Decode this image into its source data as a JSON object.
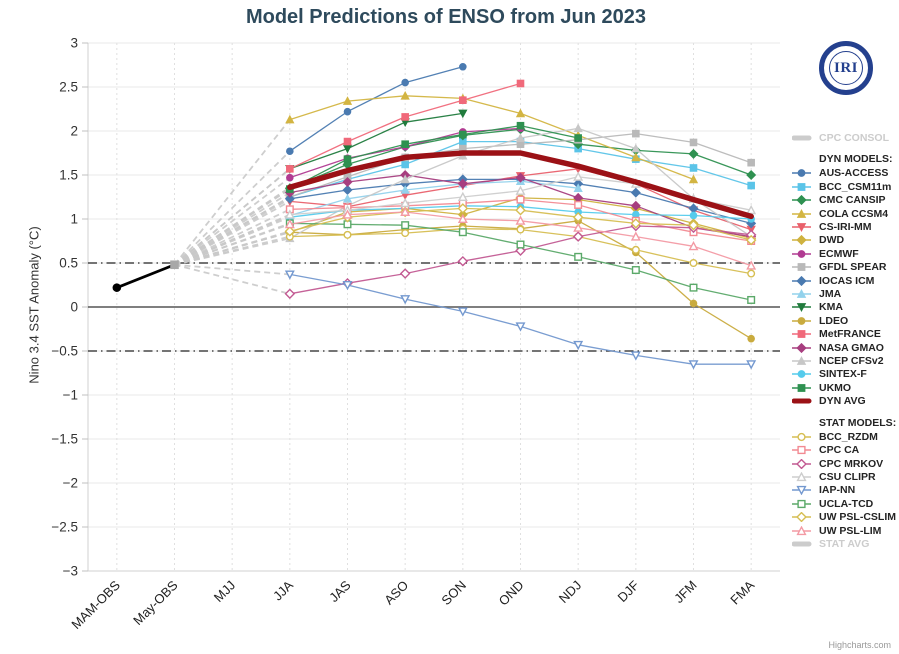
{
  "title": "Model Predictions of ENSO from Jun 2023",
  "credit": "Highcharts.com",
  "logo": {
    "text": "IRI"
  },
  "chart_data": {
    "type": "line",
    "title": "Model Predictions of ENSO from Jun 2023",
    "xlabel": "",
    "ylabel": "Nino 3.4 SST Anomaly (°C)",
    "ylim": [
      -3,
      3
    ],
    "ytick_step": 0.5,
    "grid": true,
    "legend_position": "right",
    "categories": [
      "MAM-OBS",
      "May-OBS",
      "MJJ",
      "JJA",
      "JAS",
      "ASO",
      "SON",
      "OND",
      "NDJ",
      "DJF",
      "JFM",
      "FMA"
    ],
    "observed": {
      "name": "OBS",
      "color": "#000000",
      "points": [
        {
          "category": "MAM-OBS",
          "value": 0.22,
          "marker": "circle",
          "marker_color": "#000000"
        },
        {
          "category": "May-OBS",
          "value": 0.48,
          "marker": "square",
          "marker_color": "#a8a8a8"
        }
      ]
    },
    "fan": {
      "from_category": "May-OBS",
      "from_value": 0.48,
      "color": "#c9c9c9",
      "style": "dashed"
    },
    "reference_lines": [
      {
        "value": 0,
        "style": "solid",
        "color": "#555555"
      },
      {
        "value": 0.5,
        "style": "dash-dot",
        "color": "#222222"
      },
      {
        "value": -0.5,
        "style": "dash-dot",
        "color": "#222222"
      }
    ],
    "series": [
      {
        "name": "AUS-ACCESS",
        "group": "dyn",
        "color": "#4a7ab0",
        "marker": "circle",
        "open": false,
        "values": [
          null,
          null,
          null,
          1.77,
          2.22,
          2.55,
          2.73,
          null,
          null,
          null,
          null,
          null
        ]
      },
      {
        "name": "BCC_CSM11m",
        "group": "dyn",
        "color": "#5bc4e8",
        "marker": "square",
        "open": false,
        "values": [
          null,
          null,
          null,
          1.25,
          1.45,
          1.62,
          1.88,
          1.88,
          1.8,
          1.68,
          1.58,
          1.38
        ]
      },
      {
        "name": "CMC CANSIP",
        "group": "dyn",
        "color": "#2f9151",
        "marker": "diamond",
        "open": false,
        "values": [
          null,
          null,
          null,
          1.35,
          1.62,
          1.82,
          1.95,
          2.02,
          1.85,
          1.78,
          1.74,
          1.5
        ]
      },
      {
        "name": "COLA CCSM4",
        "group": "dyn",
        "color": "#d3b542",
        "marker": "triangle",
        "open": false,
        "values": [
          null,
          null,
          null,
          2.13,
          2.34,
          2.4,
          2.37,
          2.2,
          1.95,
          1.7,
          1.45,
          null
        ]
      },
      {
        "name": "CS-IRI-MM",
        "group": "dyn",
        "color": "#e9606b",
        "marker": "triangle-down",
        "open": false,
        "values": [
          null,
          null,
          null,
          1.2,
          1.14,
          1.27,
          1.38,
          1.49,
          1.57,
          1.4,
          1.1,
          0.88
        ]
      },
      {
        "name": "DWD",
        "group": "dyn",
        "color": "#cfb23f",
        "marker": "diamond",
        "open": false,
        "values": [
          null,
          null,
          null,
          0.85,
          1.08,
          1.12,
          1.05,
          1.24,
          1.22,
          1.12,
          0.95,
          0.78
        ]
      },
      {
        "name": "ECMWF",
        "group": "dyn",
        "color": "#b13b92",
        "marker": "circle",
        "open": false,
        "values": [
          null,
          null,
          null,
          1.47,
          1.69,
          1.82,
          1.99,
          2.03,
          null,
          null,
          null,
          null
        ]
      },
      {
        "name": "GFDL SPEAR",
        "group": "dyn",
        "color": "#b9b9b9",
        "marker": "square",
        "open": false,
        "values": [
          null,
          null,
          null,
          1.25,
          1.48,
          1.7,
          1.8,
          1.85,
          1.9,
          1.97,
          1.87,
          1.64
        ]
      },
      {
        "name": "IOCAS ICM",
        "group": "dyn",
        "color": "#4a7ab0",
        "marker": "diamond",
        "open": false,
        "values": [
          null,
          null,
          null,
          1.23,
          1.33,
          1.4,
          1.45,
          1.45,
          1.4,
          1.3,
          1.12,
          0.95
        ]
      },
      {
        "name": "JMA",
        "group": "dyn",
        "color": "#93d2ec",
        "marker": "triangle",
        "open": false,
        "values": [
          null,
          null,
          null,
          1.04,
          1.23,
          1.33,
          1.4,
          1.43,
          1.35,
          null,
          null,
          null
        ]
      },
      {
        "name": "KMA",
        "group": "dyn",
        "color": "#207b3d",
        "marker": "triangle-down",
        "open": false,
        "values": [
          null,
          null,
          null,
          1.57,
          1.8,
          2.1,
          2.2,
          null,
          null,
          null,
          null,
          null
        ]
      },
      {
        "name": "LDEO",
        "group": "dyn",
        "color": "#c9ab3e",
        "marker": "circle",
        "open": false,
        "values": [
          null,
          null,
          null,
          0.85,
          0.82,
          0.88,
          0.92,
          0.89,
          0.98,
          0.62,
          0.04,
          -0.36
        ]
      },
      {
        "name": "MetFRANCE",
        "group": "dyn",
        "color": "#f0697a",
        "marker": "square",
        "open": false,
        "values": [
          null,
          null,
          null,
          1.57,
          1.88,
          2.16,
          2.35,
          2.54,
          null,
          null,
          null,
          null
        ]
      },
      {
        "name": "NASA GMAO",
        "group": "dyn",
        "color": "#a73e7f",
        "marker": "diamond",
        "open": false,
        "values": [
          null,
          null,
          null,
          1.3,
          1.42,
          1.5,
          1.4,
          1.47,
          1.24,
          1.15,
          0.9,
          0.8
        ]
      },
      {
        "name": "NCEP CFSv2",
        "group": "dyn",
        "color": "#c7c7c7",
        "marker": "triangle",
        "open": false,
        "values": [
          null,
          null,
          null,
          0.78,
          1.15,
          1.45,
          1.72,
          1.92,
          2.03,
          1.8,
          1.23,
          0.8
        ]
      },
      {
        "name": "SINTEX-F",
        "group": "dyn",
        "color": "#55cbec",
        "marker": "circle",
        "open": false,
        "values": [
          null,
          null,
          null,
          1.02,
          1.1,
          1.12,
          1.15,
          1.14,
          1.08,
          1.05,
          1.04,
          1.0
        ]
      },
      {
        "name": "UKMO",
        "group": "dyn",
        "color": "#2f9151",
        "marker": "square",
        "open": false,
        "values": [
          null,
          null,
          null,
          1.34,
          1.68,
          1.85,
          1.96,
          2.06,
          1.92,
          null,
          null,
          null
        ]
      },
      {
        "name": "DYN AVG",
        "group": "dyn",
        "color": "#9b1116",
        "marker": "none",
        "open": false,
        "line_width": 5.5,
        "values": [
          null,
          null,
          null,
          1.36,
          1.55,
          1.7,
          1.75,
          1.75,
          1.6,
          1.42,
          1.22,
          1.03
        ]
      },
      {
        "name": "BCC_RZDM",
        "group": "stat",
        "color": "#d6be52",
        "marker": "circle",
        "open": true,
        "values": [
          null,
          null,
          null,
          0.8,
          0.82,
          0.84,
          0.89,
          0.88,
          0.8,
          0.65,
          0.5,
          0.38
        ]
      },
      {
        "name": "CPC CA",
        "group": "stat",
        "color": "#f28a92",
        "marker": "square",
        "open": true,
        "values": [
          null,
          null,
          null,
          1.11,
          1.13,
          1.15,
          1.18,
          1.22,
          1.16,
          0.98,
          0.85,
          0.75
        ]
      },
      {
        "name": "CPC MRKOV",
        "group": "stat",
        "color": "#c25a92",
        "marker": "diamond",
        "open": true,
        "values": [
          null,
          null,
          null,
          0.15,
          0.27,
          0.38,
          0.52,
          0.64,
          0.8,
          0.92,
          0.9,
          0.82
        ]
      },
      {
        "name": "CSU CLIPR",
        "group": "stat",
        "color": "#cdcdcd",
        "marker": "triangle",
        "open": true,
        "values": [
          null,
          null,
          null,
          1.05,
          1.1,
          1.18,
          1.25,
          1.32,
          1.48,
          1.4,
          1.23,
          1.1
        ]
      },
      {
        "name": "IAP-NN",
        "group": "stat",
        "color": "#7398cf",
        "marker": "triangle-down",
        "open": true,
        "values": [
          null,
          null,
          null,
          0.37,
          0.25,
          0.09,
          -0.05,
          -0.22,
          -0.43,
          -0.55,
          -0.65,
          -0.65
        ]
      },
      {
        "name": "UCLA-TCD",
        "group": "stat",
        "color": "#5ba969",
        "marker": "square",
        "open": true,
        "values": [
          null,
          null,
          null,
          0.95,
          0.94,
          0.93,
          0.85,
          0.71,
          0.57,
          0.42,
          0.22,
          0.08
        ]
      },
      {
        "name": "UW PSL-CSLIM",
        "group": "stat",
        "color": "#d6be52",
        "marker": "diamond",
        "open": true,
        "values": [
          null,
          null,
          null,
          0.86,
          1.02,
          1.08,
          1.12,
          1.1,
          1.02,
          0.95,
          0.93,
          0.76
        ]
      },
      {
        "name": "UW PSL-LIM",
        "group": "stat",
        "color": "#f39aa4",
        "marker": "triangle",
        "open": true,
        "values": [
          null,
          null,
          null,
          0.94,
          1.05,
          1.08,
          1.0,
          0.98,
          0.9,
          0.8,
          0.69,
          0.47
        ]
      }
    ],
    "legend": {
      "sections": [
        {
          "header": null,
          "items": [
            {
              "label": "CPC CONSOL",
              "glyph": "thick-line",
              "color": "#cccccc",
              "disabled": true
            }
          ]
        },
        {
          "header": "DYN MODELS:",
          "items": [
            {
              "label": "AUS-ACCESS"
            },
            {
              "label": "BCC_CSM11m"
            },
            {
              "label": "CMC CANSIP"
            },
            {
              "label": "COLA CCSM4"
            },
            {
              "label": "CS-IRI-MM"
            },
            {
              "label": "DWD"
            },
            {
              "label": "ECMWF"
            },
            {
              "label": "GFDL SPEAR"
            },
            {
              "label": "IOCAS ICM"
            },
            {
              "label": "JMA"
            },
            {
              "label": "KMA"
            },
            {
              "label": "LDEO"
            },
            {
              "label": "MetFRANCE"
            },
            {
              "label": "NASA GMAO"
            },
            {
              "label": "NCEP CFSv2"
            },
            {
              "label": "SINTEX-F"
            },
            {
              "label": "UKMO"
            },
            {
              "label": "DYN AVG",
              "glyph": "thick-line",
              "color": "#9b1116"
            }
          ]
        },
        {
          "header": "STAT MODELS:",
          "items": [
            {
              "label": "BCC_RZDM"
            },
            {
              "label": "CPC CA"
            },
            {
              "label": "CPC MRKOV"
            },
            {
              "label": "CSU CLIPR"
            },
            {
              "label": "IAP-NN"
            },
            {
              "label": "UCLA-TCD"
            },
            {
              "label": "UW PSL-CSLIM"
            },
            {
              "label": "UW PSL-LIM"
            },
            {
              "label": "STAT AVG",
              "glyph": "thick-line",
              "color": "#cccccc",
              "disabled": true
            }
          ]
        }
      ]
    }
  }
}
